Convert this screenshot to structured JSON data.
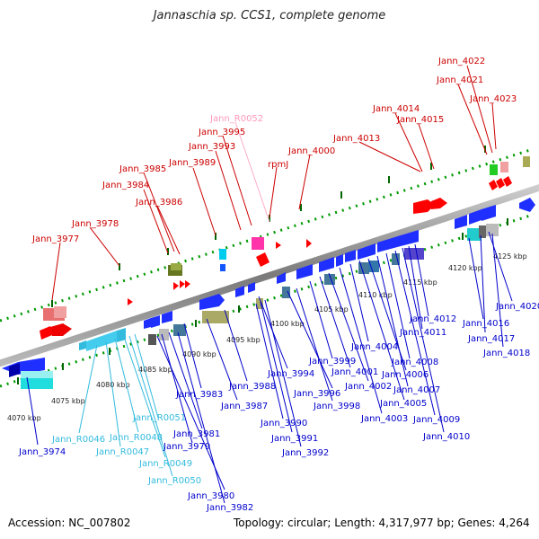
{
  "title": "Jannaschia sp. CCS1, complete genome",
  "accession": "Accession: NC_007802",
  "summary": "Topology: circular; Length: 4,317,977 bp; Genes: 4,264",
  "colors": {
    "red_label": "#cc0000",
    "blue_label": "#0000cc",
    "cyan_label": "#33bbdd",
    "pink_label": "#ff99bb",
    "backbone": "#888888",
    "dot_track": "#009900"
  },
  "scale_ticks": [
    "4070 kbp",
    "4075 kbp",
    "4080 kbp",
    "4085 kbp",
    "4090 kbp",
    "4095 kbp",
    "4100 kbp",
    "4105 kbp",
    "4110 kbp",
    "4115 kbp",
    "4120 kbp",
    "4125 kbp"
  ],
  "top_labels": [
    "Jann_3977",
    "Jann_3978",
    "Jann_3984",
    "Jann_3985",
    "Jann_3986",
    "Jann_3989",
    "Jann_3993",
    "Jann_3995",
    "Jann_R0052",
    "rpmJ",
    "Jann_4000",
    "Jann_4013",
    "Jann_4014",
    "Jann_4015",
    "Jann_4021",
    "Jann_4022",
    "Jann_4023"
  ],
  "bottom_labels": [
    "Jann_3974",
    "Jann_R0046",
    "Jann_R0047",
    "Jann_R0048",
    "Jann_R0049",
    "Jann_R0050",
    "Jann_R0051",
    "Jann_3979",
    "Jann_3980",
    "Jann_3981",
    "Jann_3982",
    "Jann_3983",
    "Jann_3987",
    "Jann_3988",
    "Jann_3990",
    "Jann_3991",
    "Jann_3992",
    "Jann_3994",
    "Jann_3996",
    "Jann_3998",
    "Jann_3999",
    "Jann_4001",
    "Jann_4002",
    "Jann_4003",
    "Jann_4004",
    "Jann_4005",
    "Jann_4006",
    "Jann_4007",
    "Jann_4008",
    "Jann_4009",
    "Jann_4010",
    "Jann_4011",
    "Jann_4012",
    "Jann_4016",
    "Jann_4017",
    "Jann_4018",
    "Jann_4020"
  ]
}
